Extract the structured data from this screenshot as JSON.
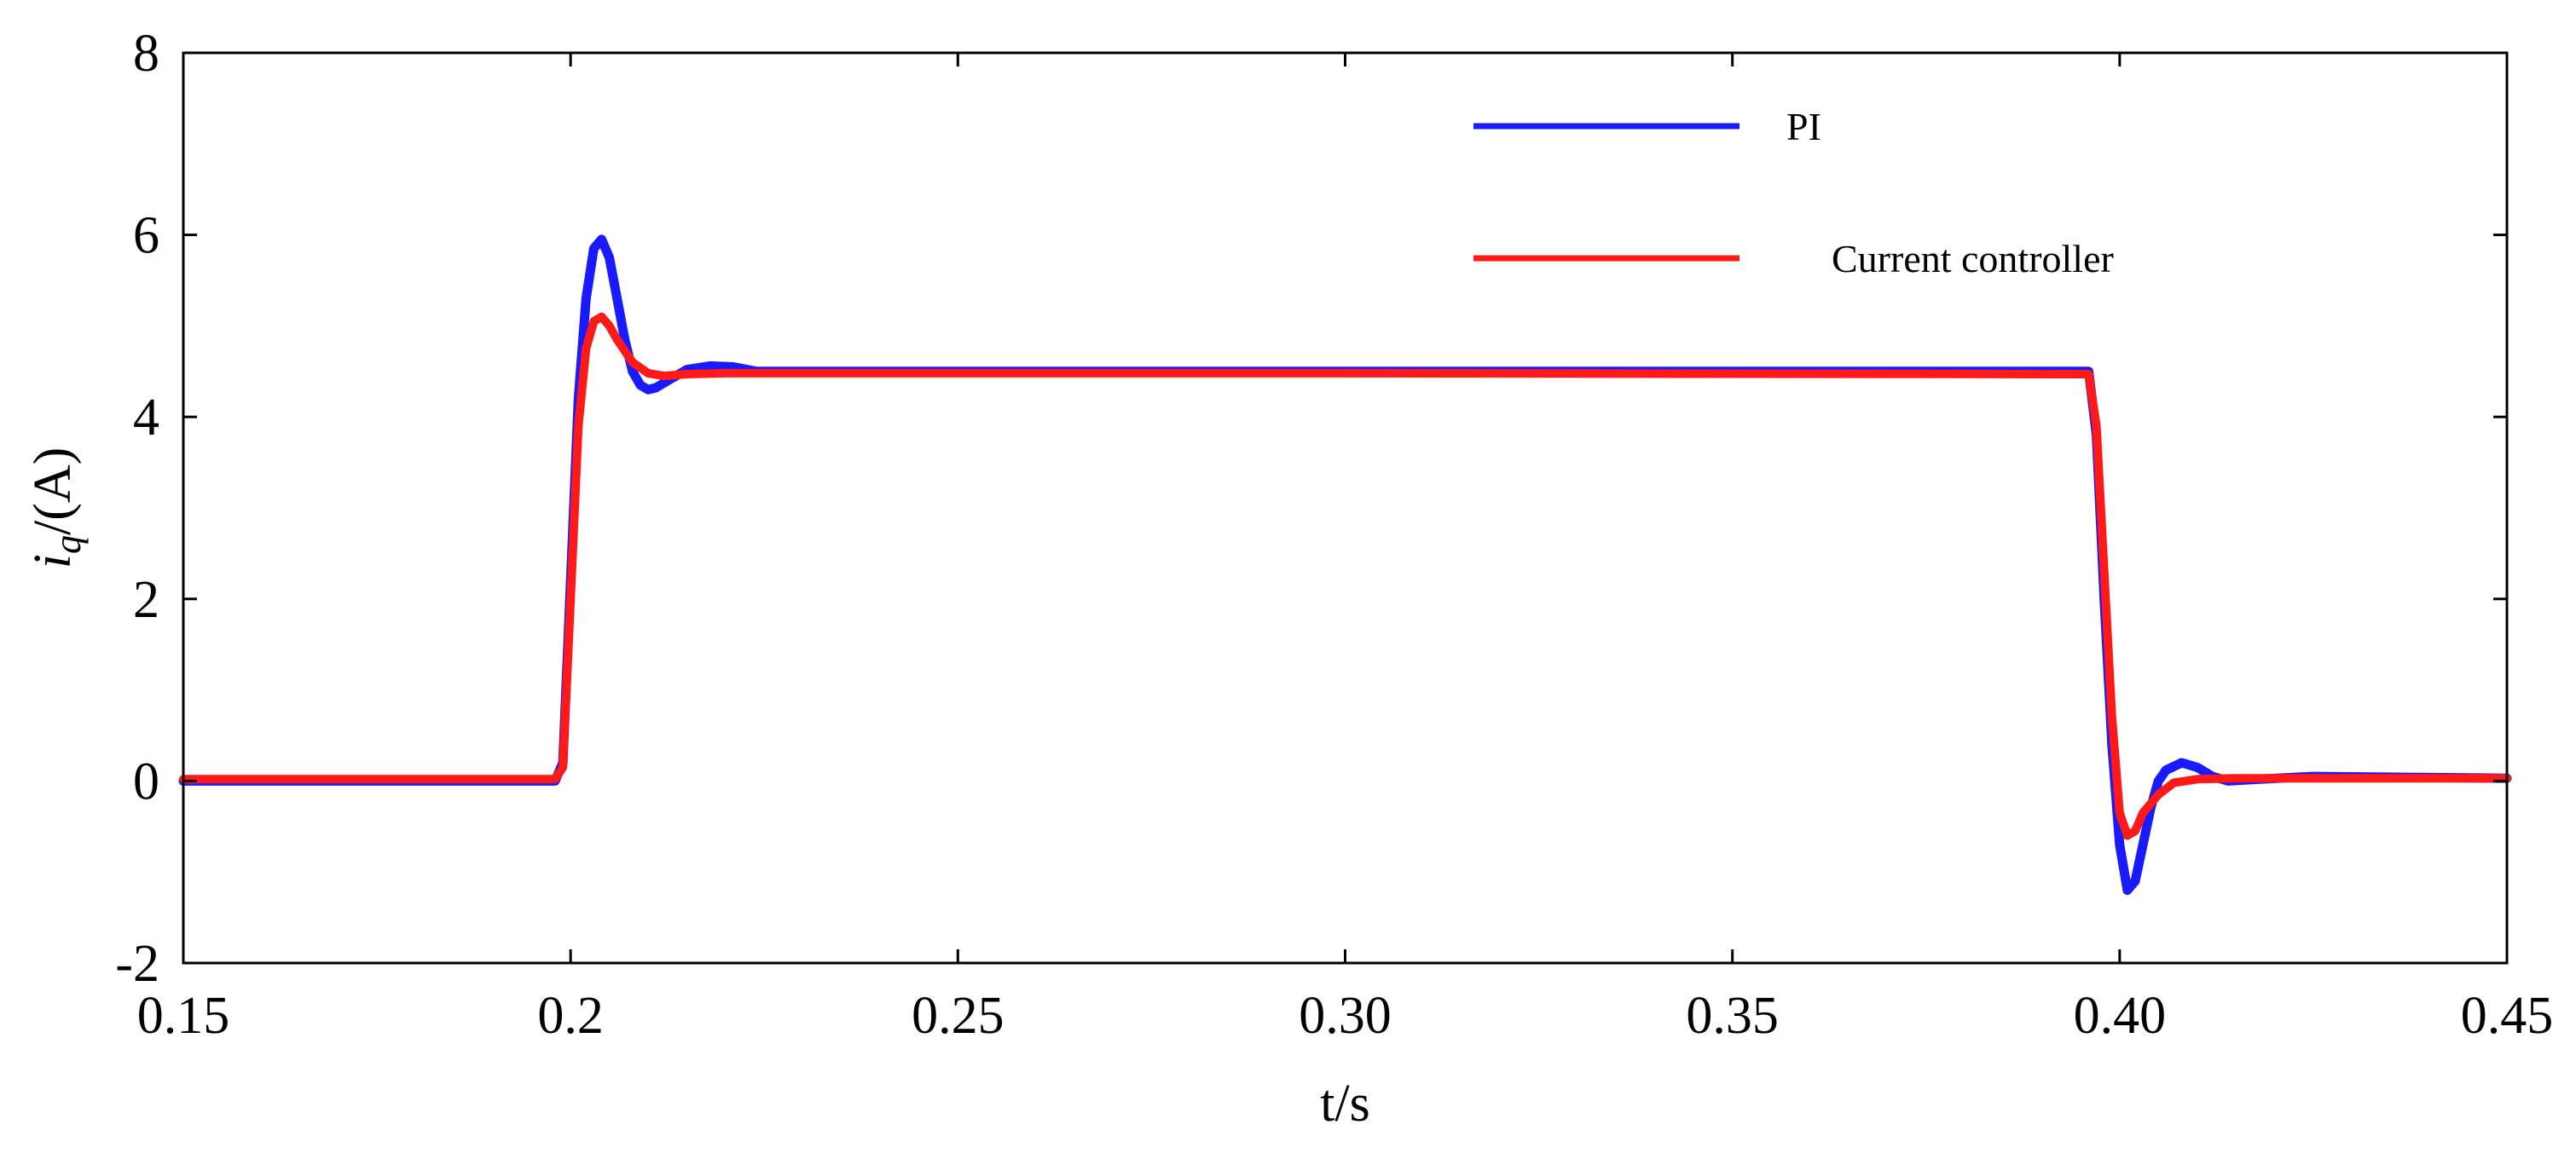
{
  "chart_data": {
    "type": "line",
    "title": "",
    "xlabel": "t/s",
    "ylabel": "iq/(A)",
    "ylabel_parts": {
      "base": "i",
      "subscript": "q",
      "suffix": "/(A)"
    },
    "xlim": [
      0.15,
      0.45
    ],
    "ylim": [
      -2,
      8
    ],
    "xticks": [
      0.15,
      0.2,
      0.25,
      0.3,
      0.35,
      0.4,
      0.45
    ],
    "xtick_labels": [
      "0.15",
      "0.2",
      "0.25",
      "0.30",
      "0.35",
      "0.40",
      "0.45"
    ],
    "yticks": [
      -2,
      0,
      2,
      4,
      6,
      8
    ],
    "ytick_labels": [
      "-2",
      "0",
      "2",
      "4",
      "6",
      "8"
    ],
    "grid": false,
    "legend_position": "top-right",
    "series": [
      {
        "name": "PI",
        "color": "#1a1aff",
        "points": [
          [
            0.15,
            0.0
          ],
          [
            0.198,
            0.0
          ],
          [
            0.199,
            0.2
          ],
          [
            0.2,
            2.2
          ],
          [
            0.201,
            4.2
          ],
          [
            0.202,
            5.3
          ],
          [
            0.203,
            5.85
          ],
          [
            0.204,
            5.95
          ],
          [
            0.205,
            5.75
          ],
          [
            0.206,
            5.3
          ],
          [
            0.207,
            4.85
          ],
          [
            0.208,
            4.5
          ],
          [
            0.209,
            4.35
          ],
          [
            0.21,
            4.3
          ],
          [
            0.211,
            4.32
          ],
          [
            0.213,
            4.42
          ],
          [
            0.215,
            4.52
          ],
          [
            0.218,
            4.56
          ],
          [
            0.221,
            4.55
          ],
          [
            0.224,
            4.5
          ],
          [
            0.3,
            4.5
          ],
          [
            0.396,
            4.5
          ],
          [
            0.397,
            3.8
          ],
          [
            0.398,
            2.0
          ],
          [
            0.399,
            0.4
          ],
          [
            0.4,
            -0.7
          ],
          [
            0.401,
            -1.2
          ],
          [
            0.402,
            -1.1
          ],
          [
            0.403,
            -0.7
          ],
          [
            0.404,
            -0.3
          ],
          [
            0.405,
            0.0
          ],
          [
            0.406,
            0.12
          ],
          [
            0.408,
            0.2
          ],
          [
            0.41,
            0.15
          ],
          [
            0.412,
            0.05
          ],
          [
            0.414,
            0.0
          ],
          [
            0.418,
            0.02
          ],
          [
            0.425,
            0.05
          ],
          [
            0.45,
            0.03
          ]
        ]
      },
      {
        "name": "Current controller",
        "color": "#ff1a1a",
        "points": [
          [
            0.15,
            0.02
          ],
          [
            0.198,
            0.02
          ],
          [
            0.199,
            0.15
          ],
          [
            0.2,
            2.0
          ],
          [
            0.201,
            3.9
          ],
          [
            0.202,
            4.75
          ],
          [
            0.203,
            5.05
          ],
          [
            0.204,
            5.1
          ],
          [
            0.205,
            5.0
          ],
          [
            0.206,
            4.85
          ],
          [
            0.208,
            4.6
          ],
          [
            0.21,
            4.48
          ],
          [
            0.212,
            4.45
          ],
          [
            0.215,
            4.47
          ],
          [
            0.22,
            4.48
          ],
          [
            0.3,
            4.48
          ],
          [
            0.396,
            4.47
          ],
          [
            0.397,
            3.9
          ],
          [
            0.398,
            2.3
          ],
          [
            0.399,
            0.7
          ],
          [
            0.4,
            -0.35
          ],
          [
            0.401,
            -0.6
          ],
          [
            0.402,
            -0.55
          ],
          [
            0.403,
            -0.35
          ],
          [
            0.405,
            -0.15
          ],
          [
            0.407,
            -0.02
          ],
          [
            0.41,
            0.02
          ],
          [
            0.415,
            0.03
          ],
          [
            0.45,
            0.03
          ]
        ]
      }
    ]
  }
}
